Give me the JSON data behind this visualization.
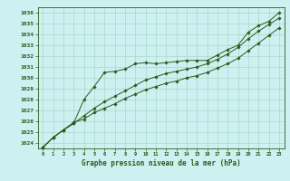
{
  "title": "Graphe pression niveau de la mer (hPa)",
  "background_color": "#cdf0f0",
  "grid_color": "#a8d8cc",
  "line_color": "#2d5a1b",
  "xlim": [
    -0.5,
    23.5
  ],
  "ylim": [
    1023.5,
    1036.5
  ],
  "yticks": [
    1024,
    1025,
    1026,
    1027,
    1028,
    1029,
    1030,
    1031,
    1032,
    1033,
    1034,
    1035,
    1036
  ],
  "xticks": [
    0,
    1,
    2,
    3,
    4,
    5,
    6,
    7,
    8,
    9,
    10,
    11,
    12,
    13,
    14,
    15,
    16,
    17,
    18,
    19,
    20,
    21,
    22,
    23
  ],
  "line1": [
    1023.6,
    1024.5,
    1025.2,
    1025.8,
    1028.0,
    1029.2,
    1030.5,
    1030.6,
    1030.8,
    1031.3,
    1031.4,
    1031.3,
    1031.4,
    1031.5,
    1031.6,
    1031.6,
    1031.6,
    1032.1,
    1032.6,
    1033.0,
    1034.2,
    1034.8,
    1035.2,
    1036.0
  ],
  "line2": [
    1023.6,
    1024.5,
    1025.2,
    1025.8,
    1026.5,
    1027.2,
    1027.8,
    1028.3,
    1028.8,
    1029.3,
    1029.8,
    1030.1,
    1030.4,
    1030.6,
    1030.8,
    1031.0,
    1031.3,
    1031.7,
    1032.2,
    1032.8,
    1033.6,
    1034.3,
    1034.9,
    1035.5
  ],
  "line3": [
    1023.6,
    1024.5,
    1025.2,
    1025.9,
    1026.2,
    1026.8,
    1027.2,
    1027.6,
    1028.1,
    1028.5,
    1028.9,
    1029.2,
    1029.5,
    1029.7,
    1030.0,
    1030.2,
    1030.5,
    1030.9,
    1031.3,
    1031.8,
    1032.5,
    1033.2,
    1033.9,
    1034.6
  ]
}
